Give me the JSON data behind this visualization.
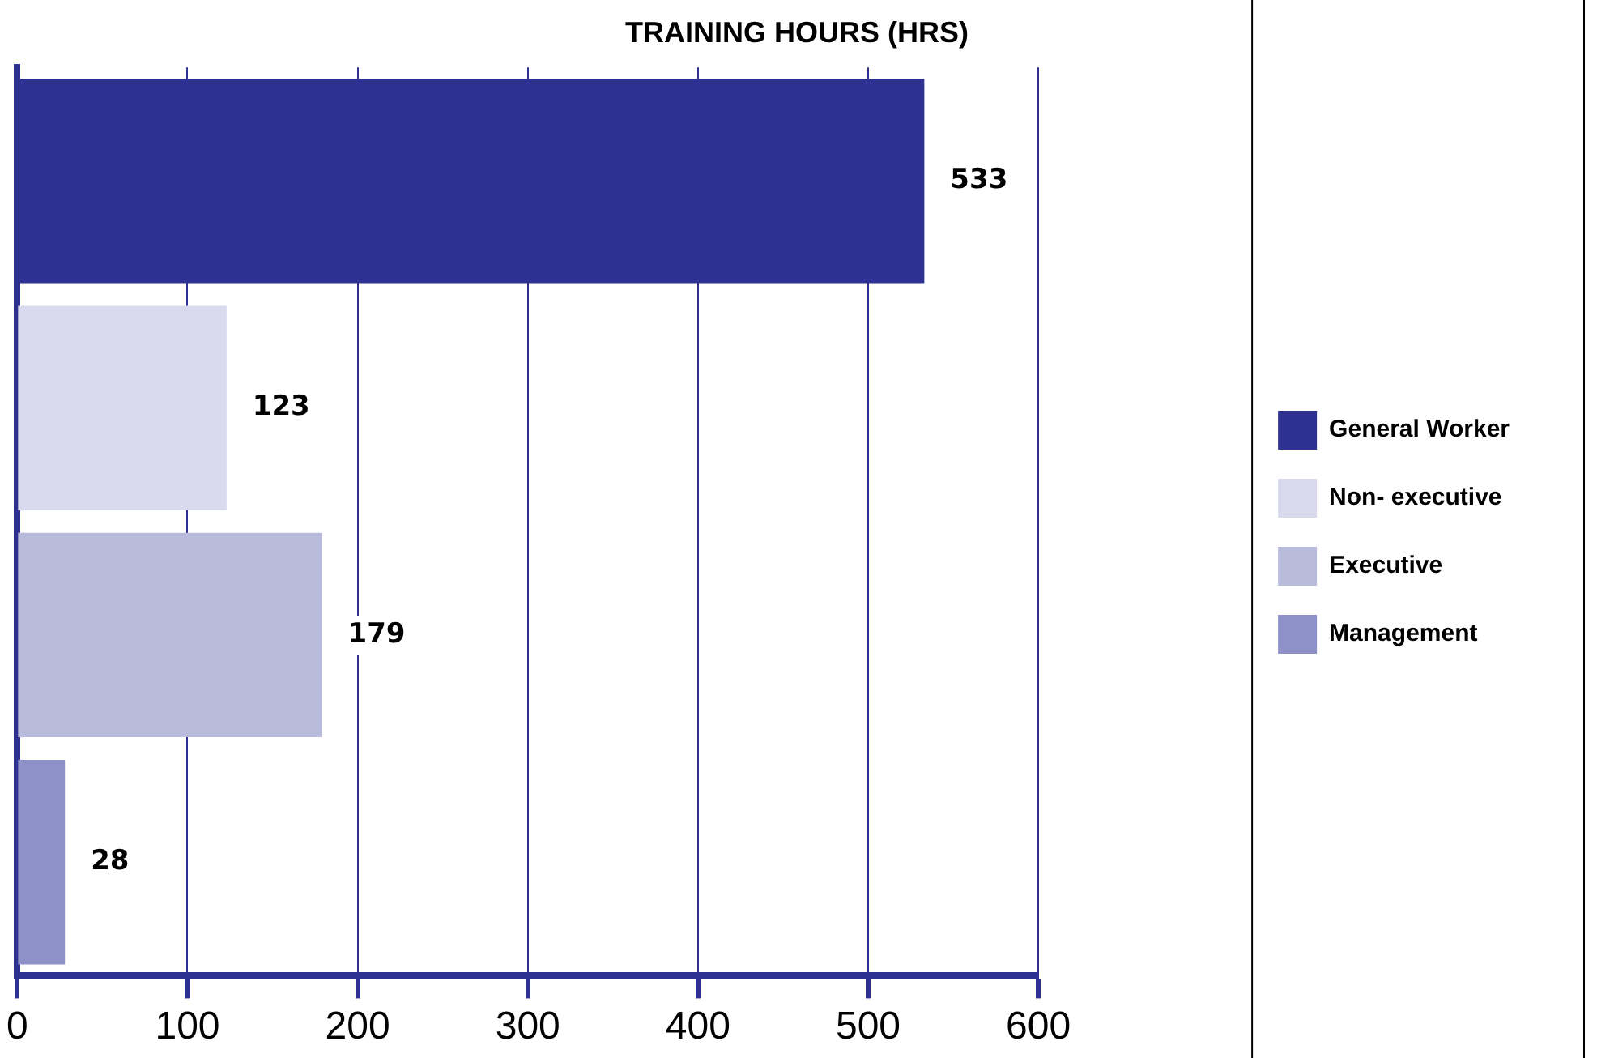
{
  "chart_data": {
    "type": "bar",
    "orientation": "horizontal",
    "stacked": true,
    "title": "TRAINING HOURS (HRS)",
    "categories": [
      null,
      null,
      null,
      null
    ],
    "series": [
      {
        "name": "General Worker",
        "color": "#2e3192",
        "values": [
          533,
          null,
          null,
          null
        ]
      },
      {
        "name": "Non- executive",
        "color": "#d9daee",
        "values": [
          null,
          123,
          null,
          null
        ]
      },
      {
        "name": "Executive",
        "color": "#b9bbdd",
        "values": [
          null,
          null,
          179,
          null
        ]
      },
      {
        "name": "Management",
        "color": "#8e90c8",
        "values": [
          null,
          null,
          null,
          28
        ]
      }
    ],
    "xlim": [
      0,
      600
    ],
    "xticks": [
      0,
      100,
      200,
      300,
      400,
      500,
      600
    ],
    "grid": "x",
    "legend": "right",
    "data_labels": true
  }
}
